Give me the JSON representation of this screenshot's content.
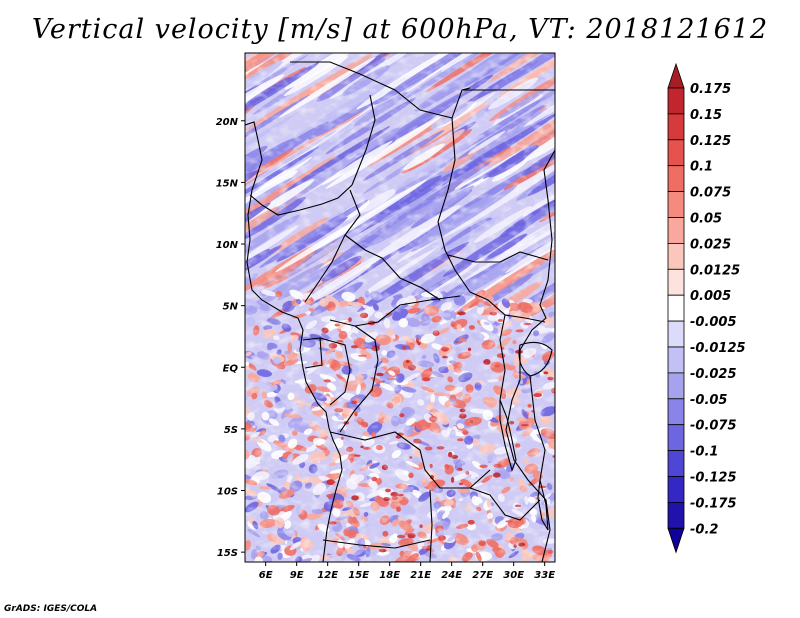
{
  "title": "Vertical velocity [m/s] at 600hPa, VT: 2018121612",
  "credit": "GrADS: IGES/COLA",
  "map": {
    "lon_labels": [
      "6E",
      "9E",
      "12E",
      "15E",
      "18E",
      "21E",
      "24E",
      "27E",
      "30E",
      "33E"
    ],
    "lon_values": [
      6,
      9,
      12,
      15,
      18,
      21,
      24,
      27,
      30,
      33
    ],
    "lat_labels": [
      "20N",
      "15N",
      "10N",
      "5N",
      "EQ",
      "5S",
      "10S",
      "15S"
    ],
    "lat_values": [
      20,
      15,
      10,
      5,
      0,
      -5,
      -10,
      -15
    ],
    "lon_range": [
      4,
      34
    ],
    "lat_range": [
      -15.8,
      25.5
    ]
  },
  "colorbar": {
    "labels": [
      "0.175",
      "0.15",
      "0.125",
      "0.1",
      "0.075",
      "0.05",
      "0.025",
      "0.0125",
      "0.005",
      "-0.005",
      "-0.0125",
      "-0.025",
      "-0.05",
      "-0.075",
      "-0.1",
      "-0.125",
      "-0.175",
      "-0.2"
    ],
    "colors": [
      "#a81c24",
      "#c1262e",
      "#d63a3c",
      "#e6524e",
      "#ee6e64",
      "#f48b7e",
      "#f8a89c",
      "#fbc6bc",
      "#fde3de",
      "#ffffff",
      "#dcdcfa",
      "#c2c0f4",
      "#a6a2ee",
      "#8a84e8",
      "#6e66e0",
      "#5046d6",
      "#3428c4",
      "#2012aa",
      "#10009a"
    ]
  }
}
